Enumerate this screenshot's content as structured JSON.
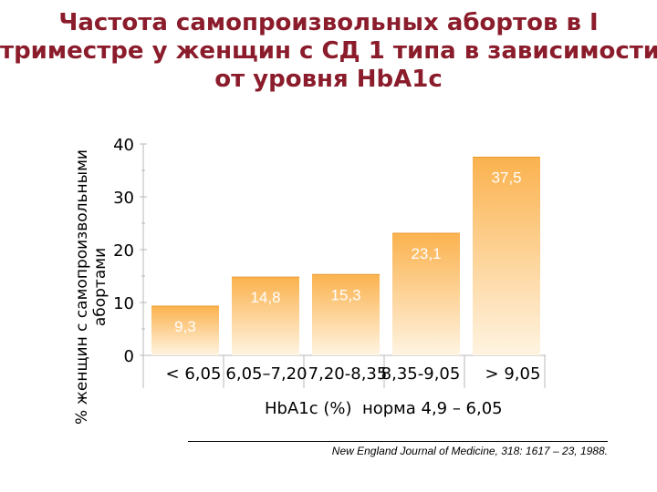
{
  "title_lines": [
    "Частота самопроизвольных абортов в I",
    "триместре у женщин с СД 1 типа в зависимости",
    "от уровня HbA1c"
  ],
  "colors": {
    "title": "#8b1c2b",
    "bar_top": "#fbb24e",
    "bar_bottom": "#fff4e2",
    "value_label": "#ffffff"
  },
  "chart_data": {
    "type": "bar",
    "title": "Частота самопроизвольных абортов в I триместре у женщин с СД 1 типа в зависимости от уровня HbA1c",
    "categories": [
      "< 6,05",
      "6,05–7,20",
      "7,20-8,35",
      "8,35-9,05",
      "> 9,05"
    ],
    "values": [
      9.3,
      14.8,
      15.3,
      23.1,
      37.5
    ],
    "value_labels": [
      "9,3",
      "14,8",
      "15,3",
      "23,1",
      "37,5"
    ],
    "ylabel_lines": [
      "% женщин с самопроизвольными",
      "абортами"
    ],
    "xlabel": "HbA1c (%)",
    "xlabel_note": "норма 4,9 – 6,05",
    "yticks": [
      0,
      10,
      20,
      30,
      40
    ],
    "ytick_labels": [
      "0",
      "10",
      "20",
      "30",
      "40"
    ],
    "ylim": [
      0,
      40
    ],
    "grid": false,
    "legend": "none"
  },
  "source": "New England Journal of Medicine, 318: 1617 – 23, 1988."
}
